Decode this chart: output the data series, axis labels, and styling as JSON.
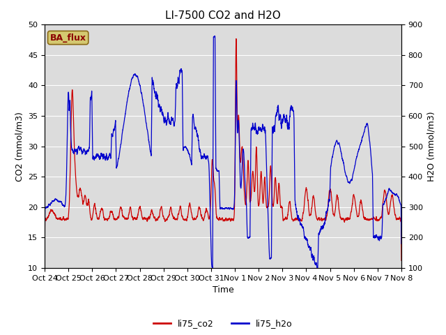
{
  "title": "LI-7500 CO2 and H2O",
  "xlabel": "Time",
  "ylabel_left": "CO2 (mmol/m3)",
  "ylabel_right": "H2O (mmol/m3)",
  "ylim_left": [
    10,
    50
  ],
  "ylim_right": [
    100,
    900
  ],
  "legend_labels": [
    "li75_co2",
    "li75_h2o"
  ],
  "legend_colors": [
    "#cc0000",
    "#0000cc"
  ],
  "ba_flux_label": "BA_flux",
  "ba_flux_bg": "#d4c870",
  "ba_flux_fg": "#8b0000",
  "background_color": "#dcdcdc",
  "xtick_labels": [
    "Oct 24",
    "Oct 25",
    "Oct 26",
    "Oct 27",
    "Oct 28",
    "Oct 29",
    "Oct 30",
    "Oct 31",
    "Nov 1",
    "Nov 2",
    "Nov 3",
    "Nov 4",
    "Nov 5",
    "Nov 6",
    "Nov 7",
    "Nov 8"
  ],
  "title_fontsize": 11,
  "axis_label_fontsize": 9,
  "tick_fontsize": 8
}
